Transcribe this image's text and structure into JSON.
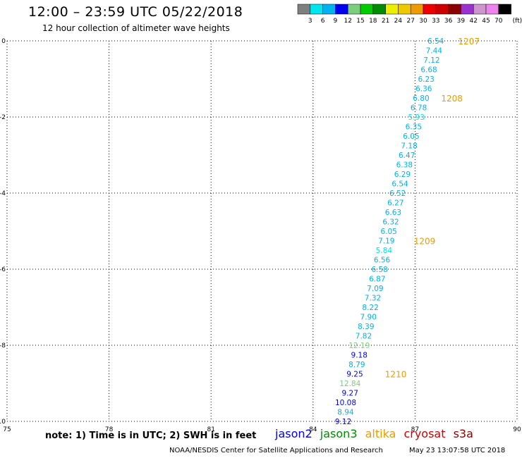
{
  "header": {
    "title": "12:00 – 23:59 UTC 05/22/2018",
    "subtitle": "12 hour collection of altimeter wave heights"
  },
  "colorbar": {
    "unit_label": "(ft)",
    "bins": [
      {
        "label": "3",
        "color": "#7f7f7f"
      },
      {
        "label": "6",
        "color": "#00e5ee"
      },
      {
        "label": "9",
        "color": "#00b2ee"
      },
      {
        "label": "12",
        "color": "#0000ee"
      },
      {
        "label": "15",
        "color": "#7ccd7c"
      },
      {
        "label": "18",
        "color": "#00cd00"
      },
      {
        "label": "21",
        "color": "#008b00"
      },
      {
        "label": "24",
        "color": "#eeee00"
      },
      {
        "label": "27",
        "color": "#eec900"
      },
      {
        "label": "30",
        "color": "#ee9a00"
      },
      {
        "label": "33",
        "color": "#ee0000"
      },
      {
        "label": "36",
        "color": "#cd0000"
      },
      {
        "label": "39",
        "color": "#8b0000"
      },
      {
        "label": "42",
        "color": "#9a32cd"
      },
      {
        "label": "45",
        "color": "#cd96cd"
      },
      {
        "label": "70",
        "color": "#ee82ee"
      },
      {
        "label": "",
        "color": "#000000"
      }
    ]
  },
  "chart_data": {
    "type": "scatter",
    "title": "12:00 – 23:59 UTC 05/22/2018",
    "subtitle": "12 hour collection of altimeter wave heights",
    "xlim": [
      75,
      90
    ],
    "ylim": [
      -10,
      0
    ],
    "xticks": [
      "75",
      "78",
      "81",
      "84",
      "87",
      "90"
    ],
    "yticks": [
      "0",
      "-2",
      "-4",
      "-6",
      "-8",
      "-10"
    ],
    "grid": true,
    "points": [
      {
        "x": 87.85,
        "y": 0.0,
        "label": "6.54",
        "color": "#00b2ee"
      },
      {
        "x": 87.8,
        "y": -0.25,
        "label": "7.44",
        "color": "#00b2ee"
      },
      {
        "x": 87.73,
        "y": -0.5,
        "label": "7.12",
        "color": "#00b2ee"
      },
      {
        "x": 87.65,
        "y": -0.75,
        "label": "6.68",
        "color": "#00b2ee"
      },
      {
        "x": 87.57,
        "y": -1.0,
        "label": "6.23",
        "color": "#00b2ee"
      },
      {
        "x": 87.5,
        "y": -1.25,
        "label": "6.36",
        "color": "#00b2ee"
      },
      {
        "x": 87.42,
        "y": -1.5,
        "label": "6.80",
        "color": "#00b2ee"
      },
      {
        "x": 87.35,
        "y": -1.75,
        "label": "6.78",
        "color": "#00b2ee"
      },
      {
        "x": 87.28,
        "y": -2.0,
        "label": "5.93",
        "color": "#00e5ee"
      },
      {
        "x": 87.2,
        "y": -2.25,
        "label": "6.35",
        "color": "#00b2ee"
      },
      {
        "x": 87.13,
        "y": -2.5,
        "label": "6.05",
        "color": "#00b2ee"
      },
      {
        "x": 87.07,
        "y": -2.75,
        "label": "7.18",
        "color": "#00b2ee"
      },
      {
        "x": 87.0,
        "y": -3.0,
        "label": "6.47",
        "color": "#00b2ee"
      },
      {
        "x": 86.93,
        "y": -3.25,
        "label": "6.38",
        "color": "#00b2ee"
      },
      {
        "x": 86.87,
        "y": -3.5,
        "label": "6.29",
        "color": "#00b2ee"
      },
      {
        "x": 86.8,
        "y": -3.75,
        "label": "6.54",
        "color": "#00b2ee"
      },
      {
        "x": 86.73,
        "y": -4.0,
        "label": "6.52",
        "color": "#00b2ee"
      },
      {
        "x": 86.67,
        "y": -4.25,
        "label": "6.27",
        "color": "#00b2ee"
      },
      {
        "x": 86.6,
        "y": -4.5,
        "label": "6.63",
        "color": "#00b2ee"
      },
      {
        "x": 86.53,
        "y": -4.75,
        "label": "6.32",
        "color": "#00b2ee"
      },
      {
        "x": 86.47,
        "y": -5.0,
        "label": "6.05",
        "color": "#00b2ee"
      },
      {
        "x": 86.4,
        "y": -5.25,
        "label": "7.19",
        "color": "#00b2ee"
      },
      {
        "x": 86.33,
        "y": -5.5,
        "label": "5.84",
        "color": "#00e5ee"
      },
      {
        "x": 86.27,
        "y": -5.75,
        "label": "6.56",
        "color": "#00b2ee"
      },
      {
        "x": 86.2,
        "y": -6.0,
        "label": "6.58",
        "color": "#00b2ee"
      },
      {
        "x": 86.13,
        "y": -6.25,
        "label": "6.87",
        "color": "#00b2ee"
      },
      {
        "x": 86.07,
        "y": -6.5,
        "label": "7.09",
        "color": "#00b2ee"
      },
      {
        "x": 86.0,
        "y": -6.75,
        "label": "7.32",
        "color": "#00b2ee"
      },
      {
        "x": 85.93,
        "y": -7.0,
        "label": "8.22",
        "color": "#00b2ee"
      },
      {
        "x": 85.87,
        "y": -7.25,
        "label": "7.90",
        "color": "#00b2ee"
      },
      {
        "x": 85.8,
        "y": -7.5,
        "label": "8.39",
        "color": "#00b2ee"
      },
      {
        "x": 85.73,
        "y": -7.75,
        "label": "7.82",
        "color": "#00b2ee"
      },
      {
        "x": 85.67,
        "y": -8.0,
        "label": "12.19",
        "color": "#7ccd7c"
      },
      {
        "x": 85.6,
        "y": -8.25,
        "label": "9.18",
        "color": "#0000ee"
      },
      {
        "x": 85.53,
        "y": -8.5,
        "label": "8.79",
        "color": "#00b2ee"
      },
      {
        "x": 85.47,
        "y": -8.75,
        "label": "9.25",
        "color": "#0000ee"
      },
      {
        "x": 85.4,
        "y": -9.0,
        "label": "12.84",
        "color": "#7ccd7c"
      },
      {
        "x": 85.33,
        "y": -9.25,
        "label": "9.27",
        "color": "#0000ee"
      },
      {
        "x": 85.27,
        "y": -9.5,
        "label": "10.08",
        "color": "#0000ee"
      },
      {
        "x": 85.2,
        "y": -9.75,
        "label": "8.94",
        "color": "#00b2ee"
      },
      {
        "x": 85.13,
        "y": -10.0,
        "label": "9.12",
        "color": "#0000ee"
      }
    ],
    "time_labels": [
      {
        "x": 88.9,
        "y": 0.0,
        "label": "1207",
        "color": "#ee9a00"
      },
      {
        "x": 88.4,
        "y": -1.5,
        "label": "1208",
        "color": "#ee9a00"
      },
      {
        "x": 87.6,
        "y": -5.25,
        "label": "1209",
        "color": "#ee9a00"
      },
      {
        "x": 86.75,
        "y": -8.75,
        "label": "1210",
        "color": "#ee9a00"
      }
    ]
  },
  "footer": {
    "note": "note:  1) Time is in UTC;  2) SWH is in feet",
    "legend": [
      {
        "label": "jason2",
        "color": "#0000ee"
      },
      {
        "label": "jason3",
        "color": "#008b00"
      },
      {
        "label": "altika",
        "color": "#ee9a00"
      },
      {
        "label": "cryosat",
        "color": "#cd0000"
      },
      {
        "label": "s3a",
        "color": "#8b0000"
      }
    ],
    "credit": "NOAA/NESDIS Center for Satellite Applications and Research",
    "timestamp": "May 23 13:07:58 UTC 2018"
  }
}
